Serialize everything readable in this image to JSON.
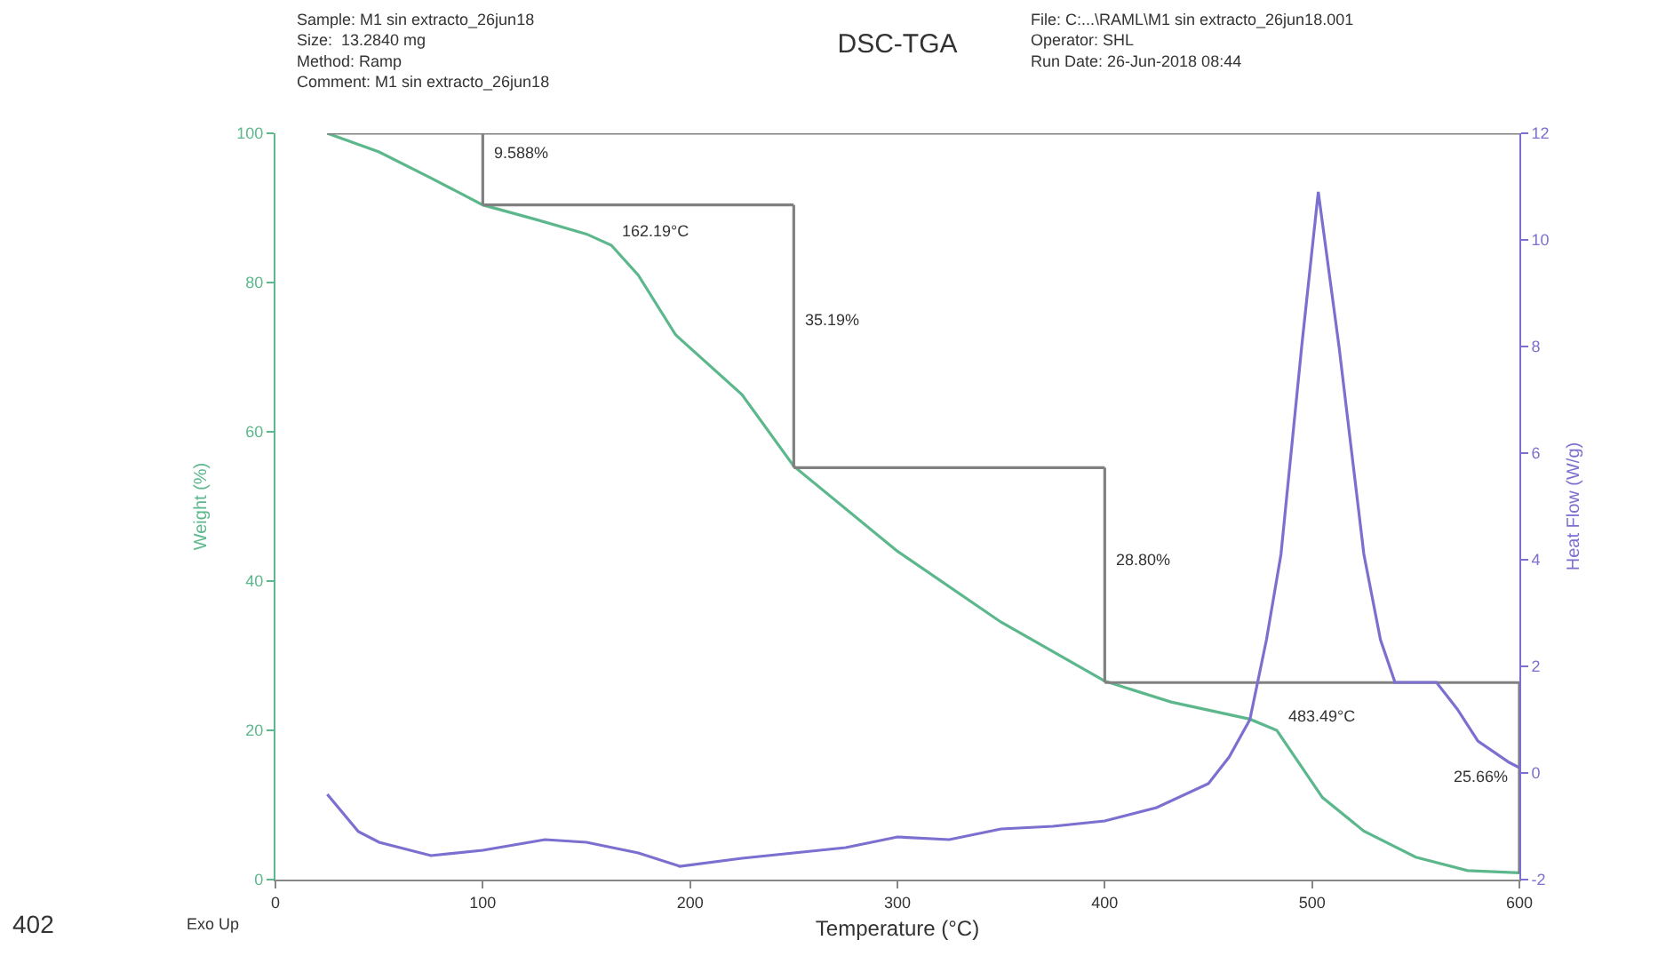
{
  "chart_data": {
    "type": "line",
    "title": "DSC-TGA",
    "xlabel": "Temperature (°C)",
    "ylabel": "Weight (%)",
    "y2label": "Heat Flow (W/g)",
    "xlim": [
      0,
      600
    ],
    "xticks": [
      0,
      100,
      200,
      300,
      400,
      500,
      600
    ],
    "ylim": [
      0,
      100
    ],
    "yticks": [
      0,
      20,
      40,
      60,
      80,
      100
    ],
    "y2lim": [
      -2,
      12
    ],
    "y2ticks": [
      -2,
      0,
      2,
      4,
      6,
      8,
      10,
      12
    ],
    "grid": false,
    "marker": "none",
    "line_style": "solid",
    "series": [
      {
        "color": "#5cb88c",
        "x": [
          25,
          50,
          75,
          100,
          125,
          150,
          162,
          175,
          193,
          225,
          250,
          300,
          350,
          400,
          432,
          470,
          483,
          505,
          525,
          550,
          575,
          600
        ],
        "values": [
          100,
          97.5,
          94,
          90.4,
          88.5,
          86.5,
          85,
          81,
          73,
          65,
          55.4,
          44,
          34.5,
          26.6,
          23.8,
          21.5,
          20,
          11,
          6.5,
          3,
          1.2,
          0.9
        ]
      },
      {
        "color": "#7b6fd0",
        "axis": "y2",
        "x": [
          25,
          40,
          50,
          75,
          100,
          130,
          150,
          175,
          195,
          225,
          250,
          275,
          300,
          325,
          350,
          375,
          400,
          425,
          450,
          460,
          470,
          478,
          485,
          495,
          503,
          513,
          525,
          533,
          540,
          560,
          570,
          580,
          595,
          600
        ],
        "values": [
          -0.4,
          -1.1,
          -1.3,
          -1.55,
          -1.45,
          -1.25,
          -1.3,
          -1.5,
          -1.75,
          -1.6,
          -1.5,
          -1.4,
          -1.2,
          -1.25,
          -1.05,
          -1,
          -0.9,
          -0.65,
          -0.2,
          0.3,
          1,
          2.5,
          4.1,
          8,
          10.9,
          8,
          4.1,
          2.5,
          1.7,
          1.7,
          1.2,
          0.6,
          0.2,
          0.1
        ]
      },
      {
        "color": "#808080",
        "x": [
          25,
          600
        ],
        "values": [
          100,
          100
        ]
      },
      {
        "color": "#808080",
        "x": [
          100,
          100
        ],
        "values": [
          100,
          90.4
        ]
      },
      {
        "color": "#808080",
        "x": [
          100,
          250
        ],
        "values": [
          90.4,
          90.4
        ]
      },
      {
        "color": "#808080",
        "x": [
          250,
          250
        ],
        "values": [
          90.4,
          55.2
        ]
      },
      {
        "color": "#808080",
        "x": [
          250,
          400
        ],
        "values": [
          55.2,
          55.2
        ]
      },
      {
        "color": "#808080",
        "x": [
          400,
          400
        ],
        "values": [
          55.2,
          26.4
        ]
      },
      {
        "color": "#808080",
        "x": [
          400,
          600
        ],
        "values": [
          26.4,
          26.4
        ]
      },
      {
        "color": "#808080",
        "x": [
          600,
          600
        ],
        "values": [
          26.4,
          0.8
        ]
      }
    ],
    "annotations": [
      "Sample: M1 sin extracto_26jun18\nSize:  13.2840 mg\nMethod: Ramp\nComment: M1 sin extracto_26jun18",
      "File: C:...\\RAML\\M1 sin extracto_26jun18.001\nOperator: SHL\nRun Date: 26-Jun-2018 08:44",
      "Exo Up",
      "402",
      {
        "text": "9.588%",
        "x": 100,
        "y": 95.5
      },
      {
        "text": "162.19°C",
        "x": 162,
        "y": 85
      },
      {
        "text": "35.19%",
        "x": 250,
        "y": 73
      },
      {
        "text": "28.80%",
        "x": 400,
        "y": 41
      },
      {
        "text": "483.49°C",
        "x": 483,
        "y": 20
      },
      {
        "text": "25.66%",
        "x": 600,
        "y": 12
      }
    ]
  }
}
